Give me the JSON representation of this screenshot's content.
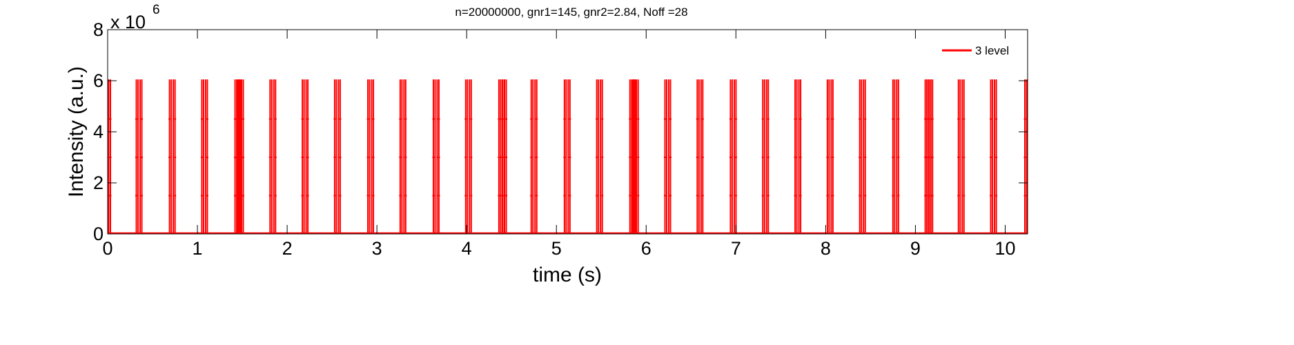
{
  "chart_data": {
    "type": "line",
    "title": "n=20000000, gnr1=145, gnr2=2.84, Noff =28",
    "xlabel": "time (s)",
    "ylabel": "Intensity (a.u.)",
    "y_multiplier": {
      "base": "x 10",
      "exponent": "6"
    },
    "xlim": [
      0,
      10.25
    ],
    "ylim": [
      0,
      8000000
    ],
    "xticks": [
      0,
      1,
      2,
      3,
      4,
      5,
      6,
      7,
      8,
      9,
      10
    ],
    "xtick_labels": [
      "0",
      "1",
      "2",
      "3",
      "4",
      "5",
      "6",
      "7",
      "8",
      "9",
      "10"
    ],
    "yticks": [
      0,
      2000000,
      4000000,
      6000000,
      8000000
    ],
    "ytick_labels": [
      "0",
      "2",
      "4",
      "6",
      "8"
    ],
    "grid": false,
    "legend_position": "top-right",
    "color": "#ff0000",
    "series": [
      {
        "name": "3 level",
        "color": "#ff0000",
        "pulse_peak": 6050000,
        "pulse_intermediate_levels": [
          1500000,
          3000000,
          4500000
        ],
        "pulse_times": [
          0.0,
          0.35,
          0.72,
          1.08,
          1.45,
          1.48,
          1.84,
          2.2,
          2.56,
          2.93,
          3.29,
          3.66,
          4.02,
          4.39,
          4.41,
          4.75,
          5.12,
          5.48,
          5.85,
          5.88,
          6.24,
          6.6,
          6.97,
          7.33,
          7.69,
          8.05,
          8.41,
          8.78,
          9.14,
          9.16,
          9.51,
          9.87,
          10.25
        ]
      }
    ]
  }
}
